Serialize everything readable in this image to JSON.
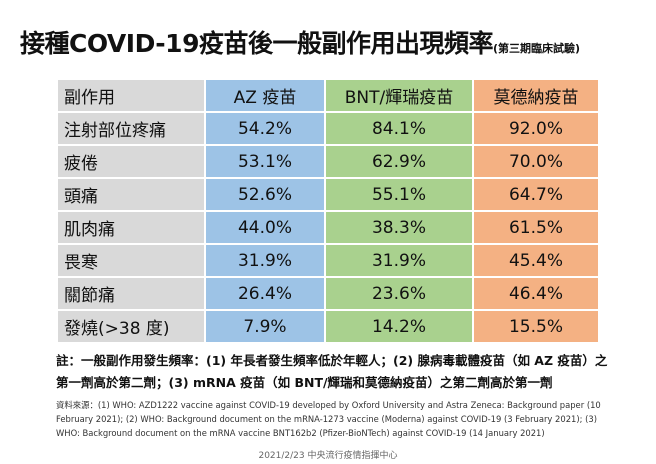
{
  "title": "接種COVID-19疫苗後一般副作用出現頻率",
  "subtitle": "(第三期臨床試驗)",
  "columns": [
    "副作用",
    "AZ 疫苗",
    "BNT/輝瑞疫苗",
    "莫德納疫苗"
  ],
  "rows": [
    [
      "注射部位疼痛",
      "54.2%",
      "84.1%",
      "92.0%"
    ],
    [
      "疲倦",
      "53.1%",
      "62.9%",
      "70.0%"
    ],
    [
      "頭痛",
      "52.6%",
      "55.1%",
      "64.7%"
    ],
    [
      "肌肉痛",
      "44.0%",
      "38.3%",
      "61.5%"
    ],
    [
      "畏寒",
      "31.9%",
      "31.9%",
      "45.4%"
    ],
    [
      "關節痛",
      "26.4%",
      "23.6%",
      "46.4%"
    ],
    [
      "發燒(>38 度)",
      "7.9%",
      "14.2%",
      "15.5%"
    ]
  ],
  "note": "註：一般副作用發生頻率：(1) 年長者發生頻率低於年輕人；(2) 腺病毒載體疫苗（如 AZ 疫苗）之第一劑高於第二劑；(3) mRNA 疫苗（如 BNT/輝瑞和莫德納疫苗）之第二劑高於第一劑",
  "source": "資料來源：(1) WHO: AZD1222 vaccine against COVID-19 developed by Oxford University and Astra Zeneca: Background paper (10 February 2021); (2) WHO: Background document on the mRNA-1273 vaccine (Moderna) against COVID-19 (3 February 2021); (3) WHO: Background document on the mRNA vaccine BNT162b2 (Pfizer-BioNTech) against COVID-19 (14 January 2021)",
  "footer": "2021/2/23 中央流行疫情指揮中心",
  "colors": {
    "label": "#d9d9d9",
    "az": "#9dc3e6",
    "bnt": "#a9d18e",
    "moderna": "#f4b183"
  }
}
